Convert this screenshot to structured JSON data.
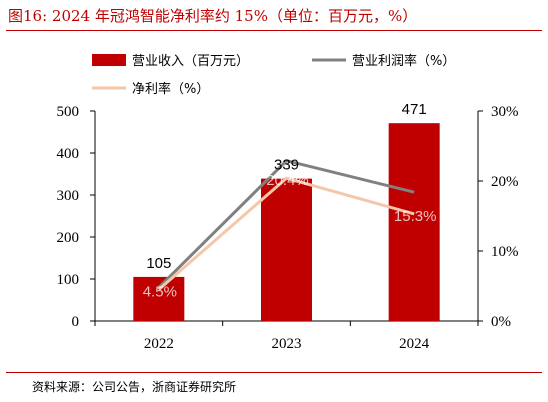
{
  "title": "图16:   2024 年冠鸿智能净利率约 15%（单位：百万元，%）",
  "source": "资料来源：公司公告，浙商证券研究所",
  "chart_data": {
    "type": "bar",
    "categories": [
      "2022",
      "2023",
      "2024"
    ],
    "series": [
      {
        "name": "营业收入（百万元）",
        "kind": "bar",
        "axis": "left",
        "color": "#c00000",
        "values": [
          105,
          339,
          471
        ],
        "labels": [
          "105",
          "339",
          "471"
        ]
      },
      {
        "name": "营业利润率（%）",
        "kind": "line",
        "axis": "right",
        "color": "#808080",
        "values": [
          4.8,
          22.9,
          18.4
        ]
      },
      {
        "name": "净利率（%）",
        "kind": "line",
        "axis": "right",
        "color": "#f4c7ab",
        "values": [
          4.5,
          20.4,
          15.3
        ],
        "labels": [
          "4.5%",
          "20.4%",
          "15.3%"
        ]
      }
    ],
    "y_left": {
      "min": 0,
      "max": 500,
      "ticks": [
        "0",
        "100",
        "200",
        "300",
        "400",
        "500"
      ]
    },
    "y_right": {
      "min": 0,
      "max": 30,
      "ticks": [
        "0%",
        "10%",
        "20%",
        "30%"
      ]
    },
    "legend_position": "top",
    "grid": false
  }
}
